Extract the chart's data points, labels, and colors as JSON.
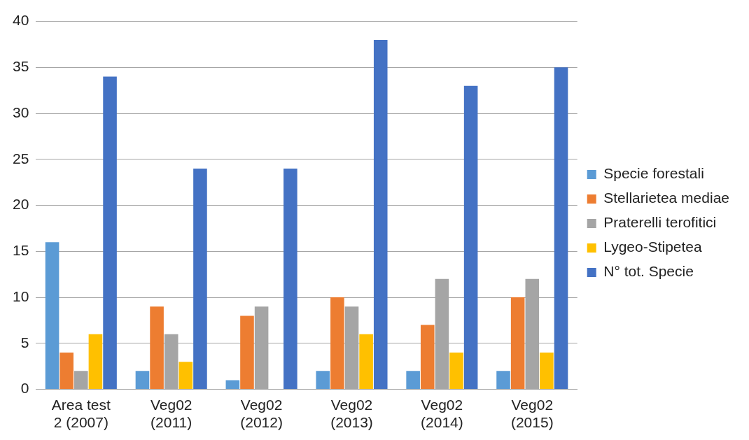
{
  "chart_data": {
    "type": "bar",
    "categories": [
      "Area test 2 (2007)",
      "Veg02 (2011)",
      "Veg02 (2012)",
      "Veg02 (2013)",
      "Veg02 (2014)",
      "Veg02 (2015)"
    ],
    "series": [
      {
        "name": "Specie forestali",
        "color": "#5b9bd5",
        "values": [
          16,
          2,
          1,
          2,
          2,
          2
        ]
      },
      {
        "name": "Stellarietea mediae",
        "color": "#ed7d31",
        "values": [
          4,
          9,
          8,
          10,
          7,
          10
        ]
      },
      {
        "name": "Praterelli terofitici",
        "color": "#a5a5a5",
        "values": [
          2,
          6,
          9,
          9,
          12,
          12
        ]
      },
      {
        "name": "Lygeo-Stipetea",
        "color": "#ffc000",
        "values": [
          6,
          3,
          0,
          6,
          4,
          4
        ]
      },
      {
        "name": "N° tot. Specie",
        "color": "#4472c4",
        "values": [
          34,
          24,
          24,
          38,
          33,
          35
        ]
      }
    ],
    "ylim": [
      0,
      40
    ],
    "yticks": [
      0,
      5,
      10,
      15,
      20,
      25,
      30,
      35,
      40
    ],
    "grid": "y",
    "legend": "right"
  }
}
